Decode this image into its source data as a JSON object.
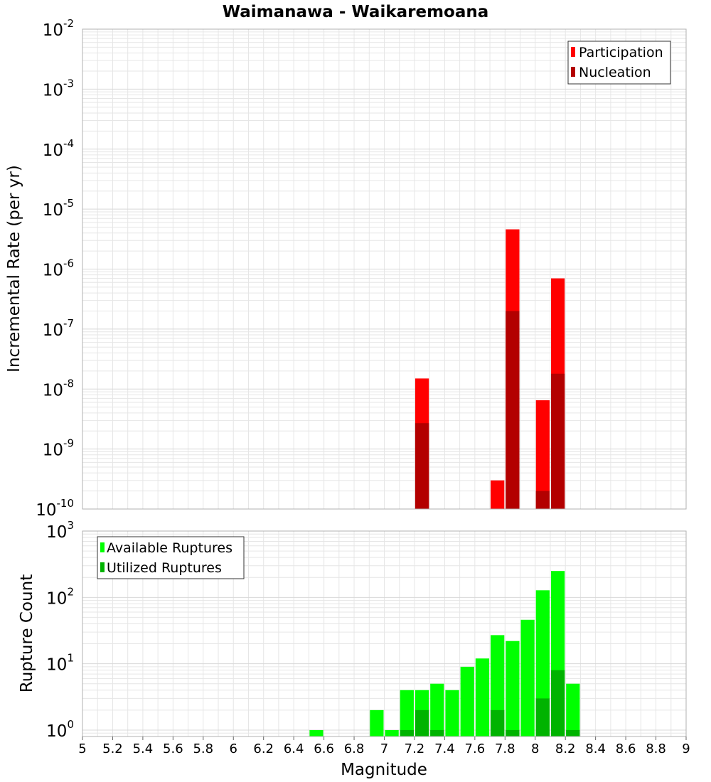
{
  "title": "Waimanawa - Waikaremoana",
  "xlabel": "Magnitude",
  "colors": {
    "participation": "#ff0000",
    "nucleation": "#b30000",
    "available": "#00ff00",
    "utilized": "#00b300",
    "grid": "#e6e6e6",
    "frame": "#b0b0b0"
  },
  "chart_data": [
    {
      "type": "bar",
      "ylabel": "Incremental Rate (per yr)",
      "yscale": "log",
      "ylim": [
        1e-10,
        0.01
      ],
      "xlim": [
        5,
        9
      ],
      "y_tick_labels": [
        {
          "base": "10",
          "exp": "-10"
        },
        {
          "base": "10",
          "exp": "-9"
        },
        {
          "base": "10",
          "exp": "-8"
        },
        {
          "base": "10",
          "exp": "-7"
        },
        {
          "base": "10",
          "exp": "-6"
        },
        {
          "base": "10",
          "exp": "-5"
        },
        {
          "base": "10",
          "exp": "-4"
        },
        {
          "base": "10",
          "exp": "-3"
        },
        {
          "base": "10",
          "exp": "-2"
        }
      ],
      "legend": "top-right",
      "bin_width": 0.1,
      "series": [
        {
          "name": "Participation",
          "color": "#ff0000",
          "x": [
            7.25,
            7.75,
            7.85,
            8.05,
            8.15
          ],
          "values": [
            1.5e-08,
            3e-10,
            4.6e-06,
            6.5e-09,
            7e-07
          ]
        },
        {
          "name": "Nucleation",
          "color": "#b30000",
          "x": [
            7.25,
            7.85,
            8.05,
            8.15
          ],
          "values": [
            2.7e-09,
            2e-07,
            2e-10,
            1.8e-08
          ]
        }
      ]
    },
    {
      "type": "bar",
      "ylabel": "Rupture Count",
      "yscale": "log",
      "ylim": [
        0.8,
        1000
      ],
      "xlim": [
        5,
        9
      ],
      "y_tick_labels": [
        {
          "base": "10",
          "exp": "0"
        },
        {
          "base": "10",
          "exp": "1"
        },
        {
          "base": "10",
          "exp": "2"
        },
        {
          "base": "10",
          "exp": "3"
        }
      ],
      "x_tick_labels": [
        "5",
        "5.2",
        "5.4",
        "5.6",
        "5.8",
        "6",
        "6.2",
        "6.4",
        "6.6",
        "6.8",
        "7",
        "7.2",
        "7.4",
        "7.6",
        "7.8",
        "8",
        "8.2",
        "8.4",
        "8.6",
        "8.8",
        "9"
      ],
      "legend": "top-left",
      "bin_width": 0.1,
      "series": [
        {
          "name": "Available Ruptures",
          "color": "#00ff00",
          "x": [
            6.55,
            6.95,
            7.05,
            7.15,
            7.25,
            7.35,
            7.45,
            7.55,
            7.65,
            7.75,
            7.85,
            7.95,
            8.05,
            8.15,
            8.25
          ],
          "values": [
            1,
            2,
            1,
            4,
            4,
            5,
            4,
            9,
            12,
            27,
            22,
            46,
            128,
            250,
            5
          ]
        },
        {
          "name": "Utilized Ruptures",
          "color": "#00b300",
          "x": [
            7.15,
            7.25,
            7.35,
            7.75,
            7.85,
            8.05,
            8.15,
            8.25
          ],
          "values": [
            1,
            2,
            1,
            2,
            1,
            3,
            8,
            1
          ]
        }
      ]
    }
  ]
}
